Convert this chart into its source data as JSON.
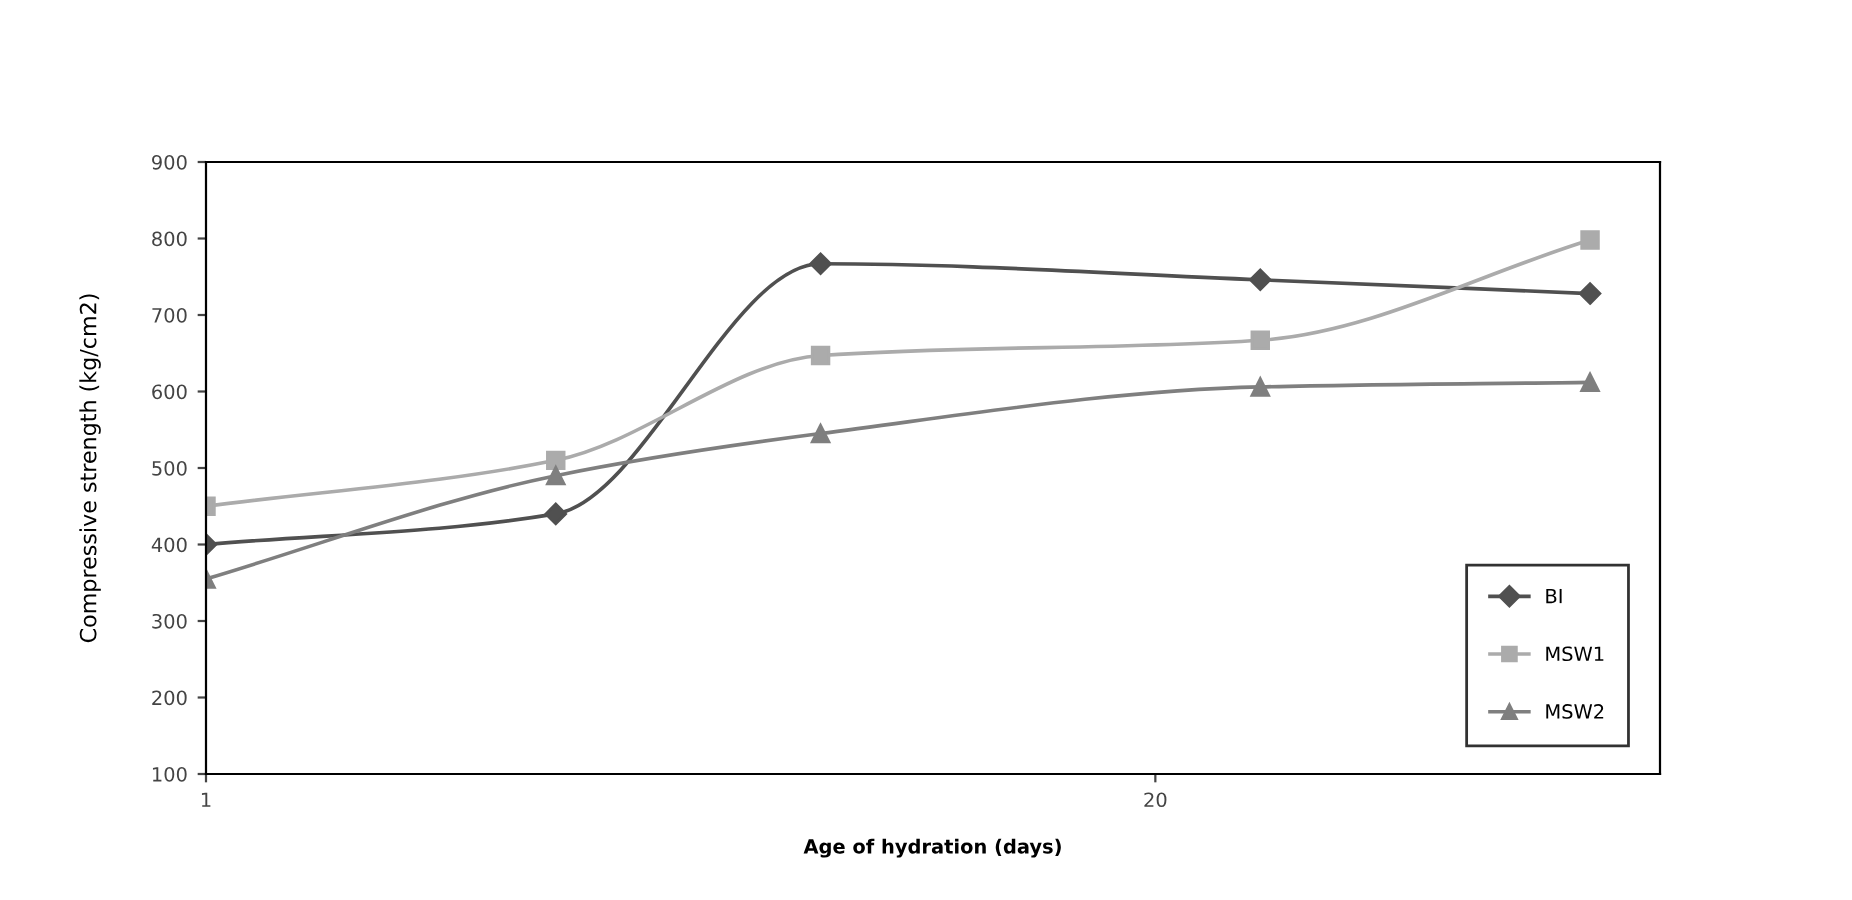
{
  "chart_data": {
    "type": "line",
    "xlabel": "Age of hydration (days)",
    "ylabel": "Compressive strength (kg/cm2)",
    "xlim": [
      1,
      30.1
    ],
    "xticks": [
      1,
      20
    ],
    "ylim": [
      100,
      900
    ],
    "yticks": [
      100,
      200,
      300,
      400,
      500,
      600,
      700,
      800,
      900
    ],
    "grid": false,
    "legend": "bottom right",
    "series": [
      {
        "name": "BI",
        "color": "#505050",
        "marker": "diamond",
        "x": [
          1,
          8,
          13.3,
          22.1,
          28.7
        ],
        "values": [
          400,
          440,
          767,
          746,
          728
        ]
      },
      {
        "name": "MSW1",
        "color": "#ababab",
        "marker": "square",
        "x": [
          1,
          8,
          13.3,
          22.1,
          28.7
        ],
        "values": [
          450,
          510,
          647,
          667,
          798
        ]
      },
      {
        "name": "MSW2",
        "color": "#7f7f7f",
        "marker": "triangle",
        "x": [
          1,
          8,
          13.3,
          22.1,
          28.7
        ],
        "values": [
          355,
          490,
          545,
          606,
          612
        ]
      }
    ]
  }
}
